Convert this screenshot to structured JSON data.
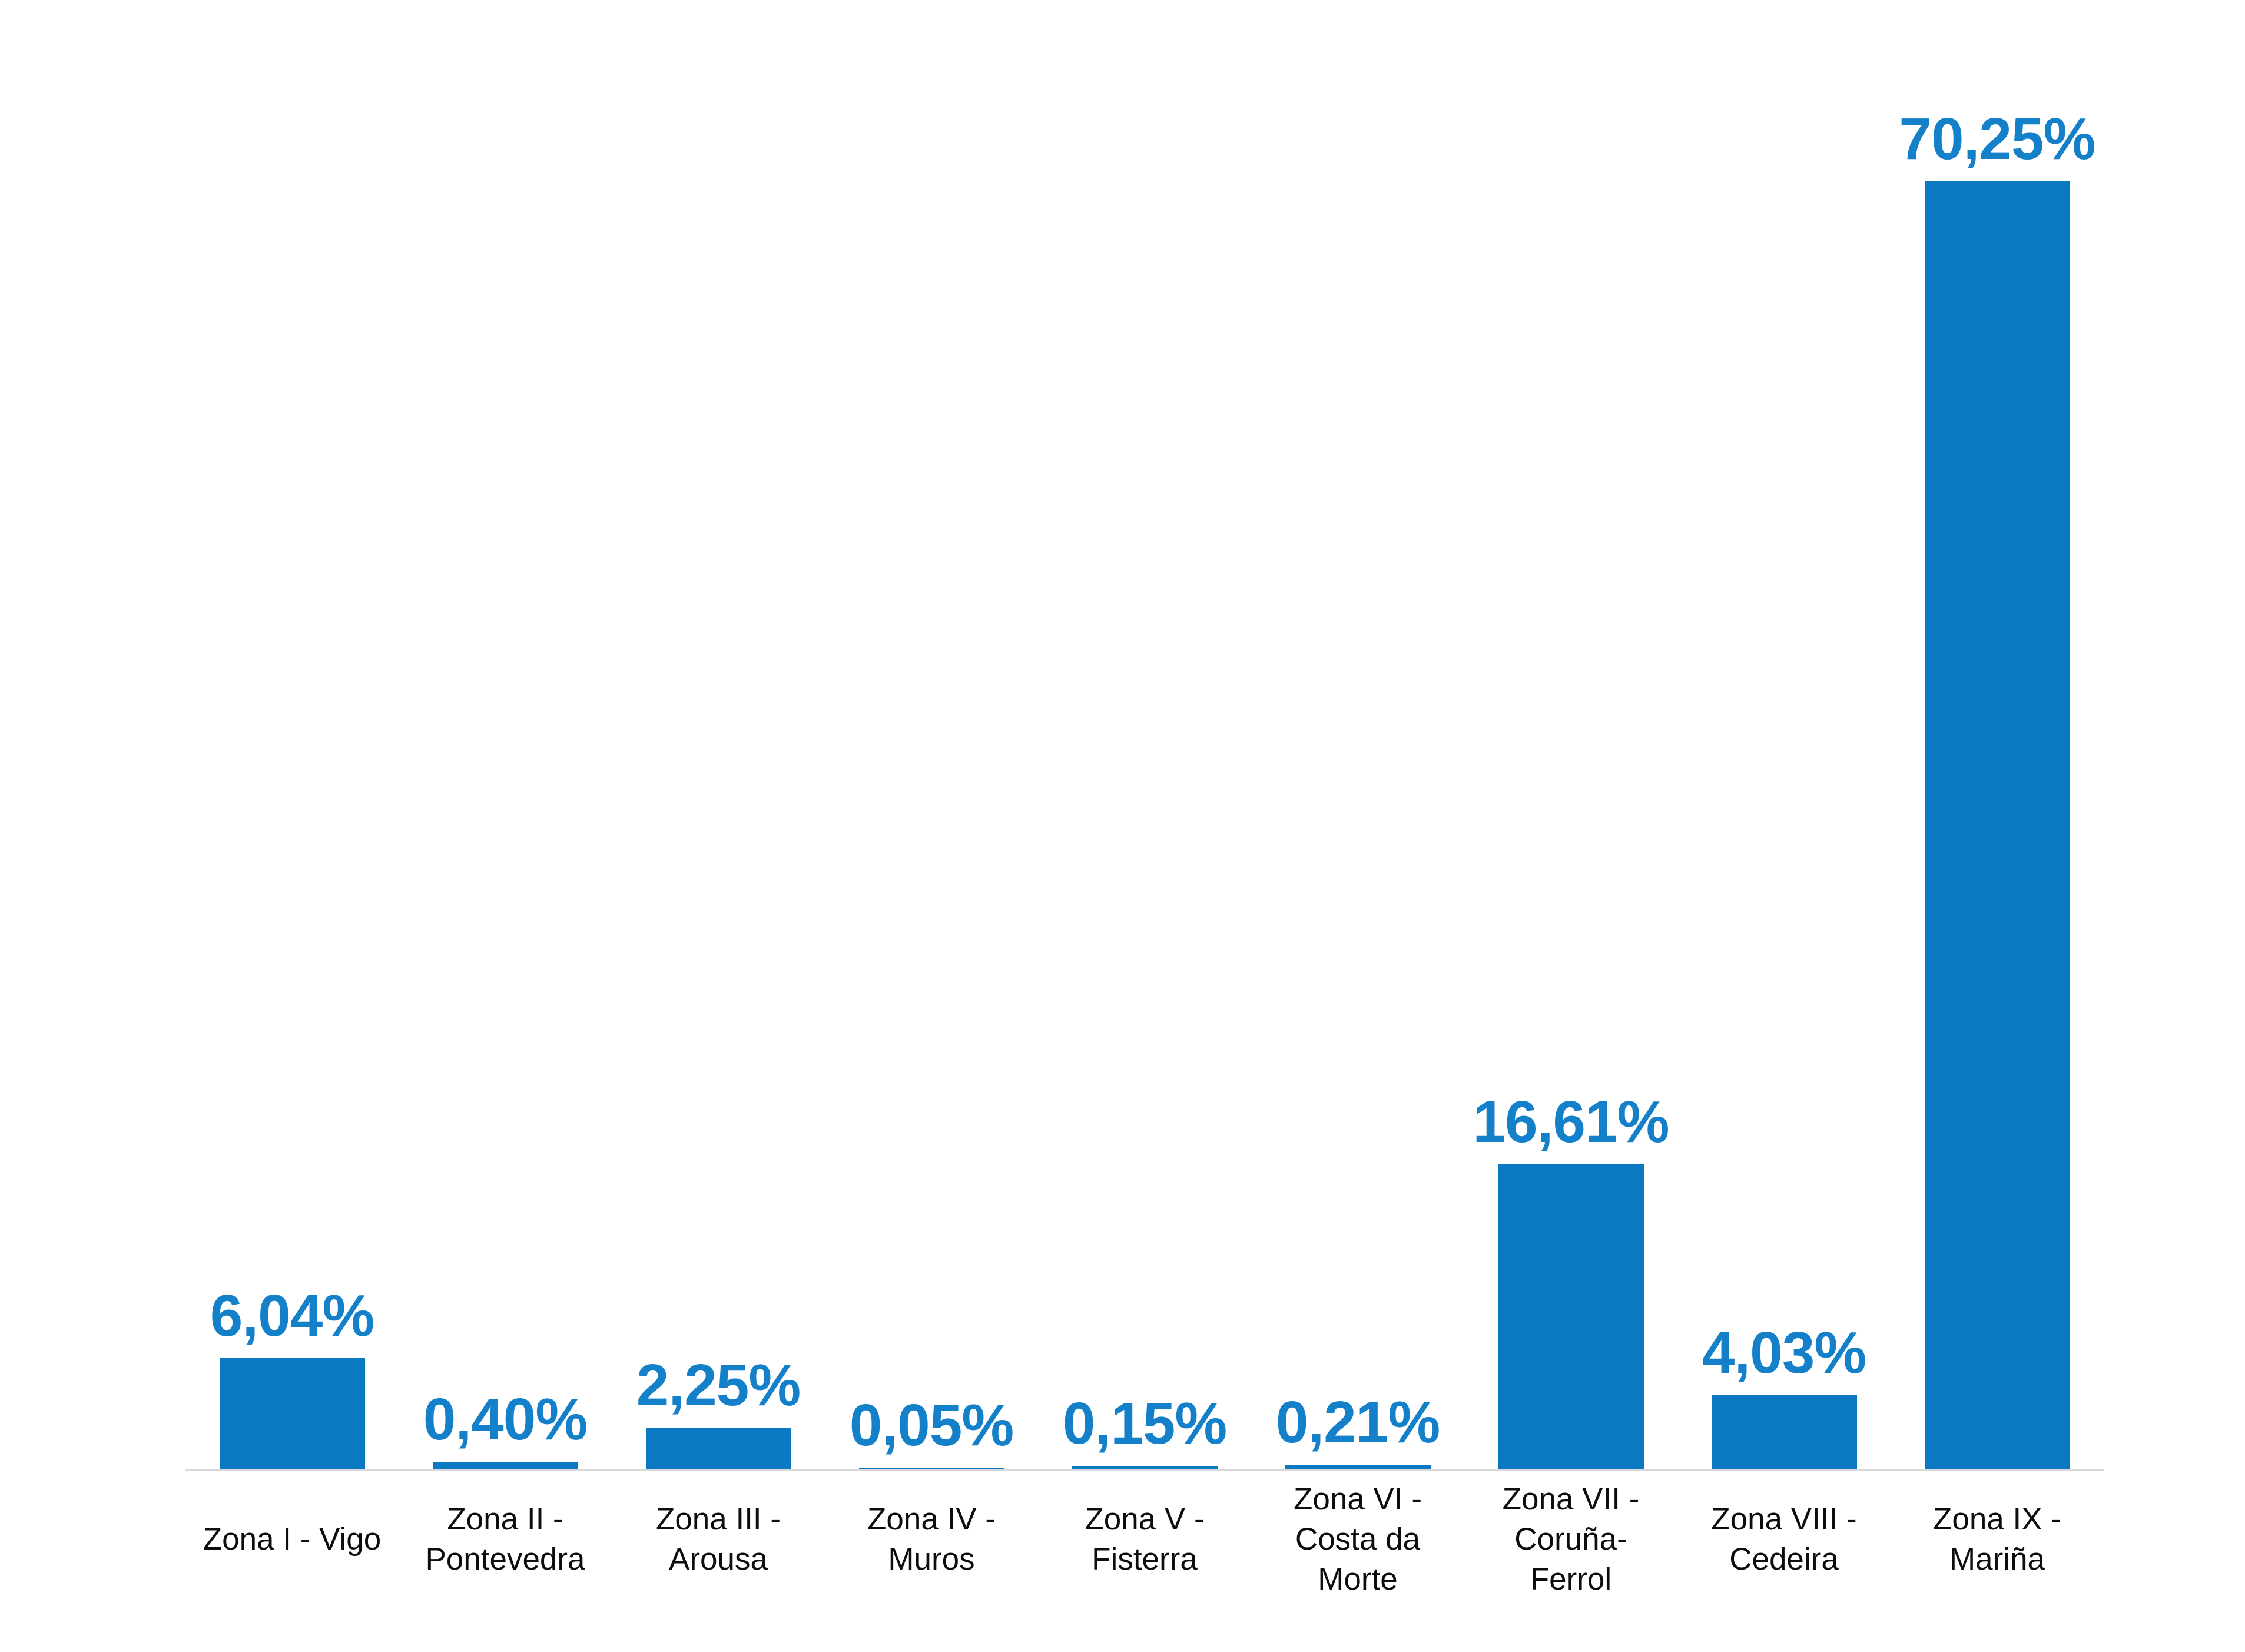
{
  "chart_data": {
    "type": "bar",
    "title": "",
    "xlabel": "",
    "ylabel": "",
    "grid": false,
    "legend": false,
    "ylim": [
      0,
      75
    ],
    "value_unit": "%",
    "decimal_separator": ",",
    "categories": [
      "Zona I - Vigo",
      "Zona II - Pontevedra",
      "Zona III - Arousa",
      "Zona IV - Muros",
      "Zona V - Fisterra",
      "Zona VI - Costa da Morte",
      "Zona VII - Coruña-Ferrol",
      "Zona VIII - Cedeira",
      "Zona IX - Mariña"
    ],
    "category_lines": [
      [
        "Zona I - Vigo"
      ],
      [
        "Zona II -",
        "Pontevedra"
      ],
      [
        "Zona III -",
        "Arousa"
      ],
      [
        "Zona IV -",
        "Muros"
      ],
      [
        "Zona V -",
        "Fisterra"
      ],
      [
        "Zona VI -",
        "Costa da",
        "Morte"
      ],
      [
        "Zona VII -",
        "Coruña-",
        "Ferrol"
      ],
      [
        "Zona VIII -",
        "Cedeira"
      ],
      [
        "Zona IX -",
        "Mariña"
      ]
    ],
    "values": [
      6.04,
      0.4,
      2.25,
      0.05,
      0.15,
      0.21,
      16.61,
      4.03,
      70.25
    ],
    "display_values": [
      "6,04%",
      "0,40%",
      "2,25%",
      "0,05%",
      "0,15%",
      "0,21%",
      "16,61%",
      "4,03%",
      "70,25%"
    ],
    "colors": {
      "bar_fill": "#0b79c1",
      "value_label": "#1480c9",
      "category_label": "#0d0d0d",
      "axis_line": "#d9d9d9",
      "background": "#ffffff"
    }
  }
}
